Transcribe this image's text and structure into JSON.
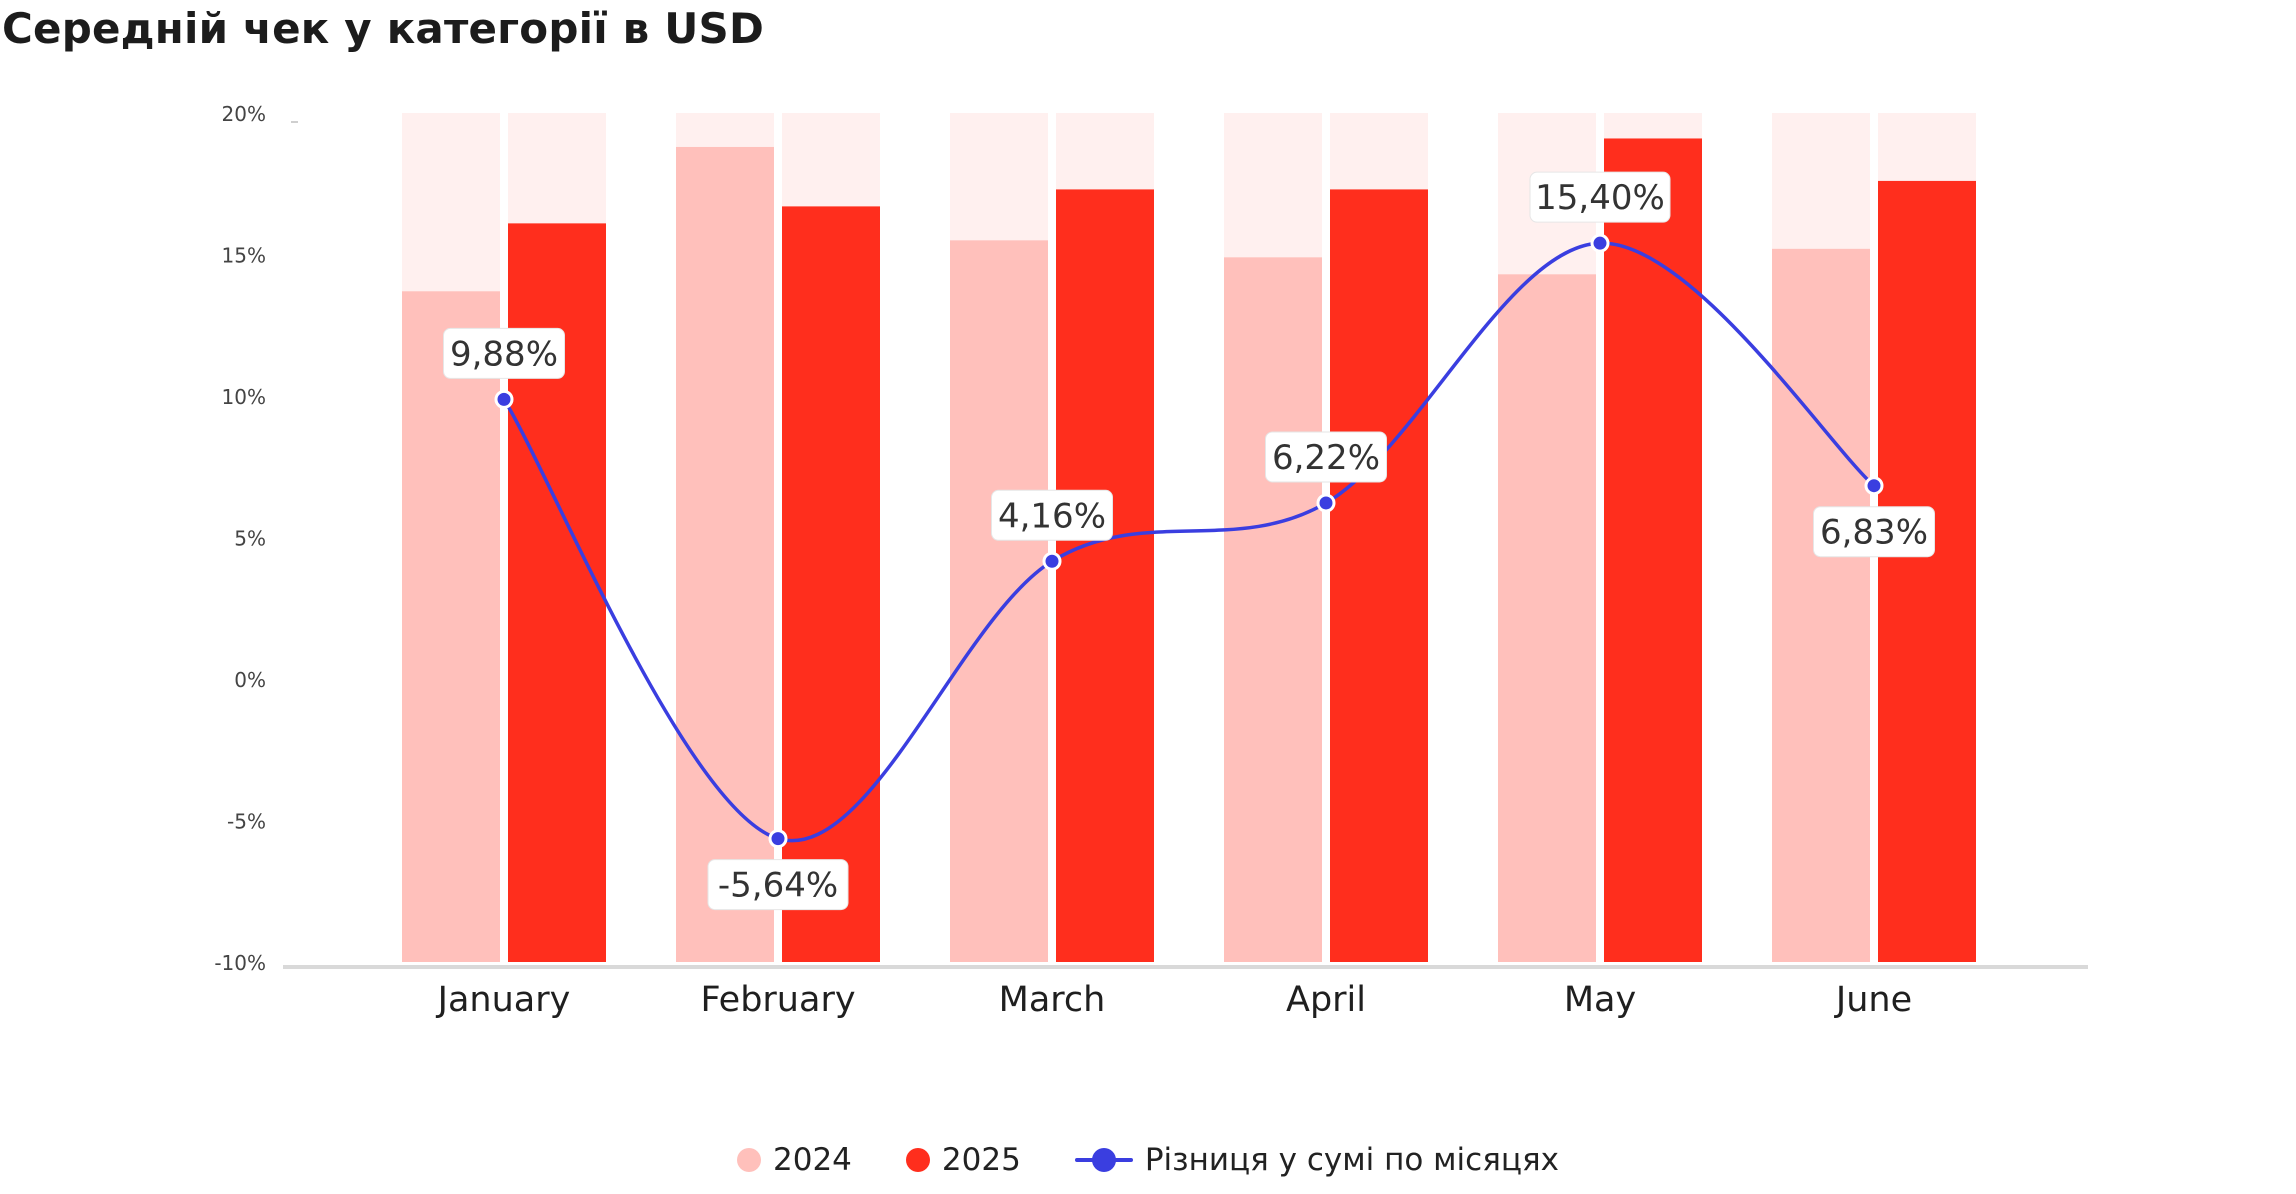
{
  "title": "Середній чек у категорії в USD",
  "colors": {
    "bar_2024": "#ffc0bb",
    "bar_2025": "#ff2e1d",
    "bar_background": "#fff0ef",
    "line": "#3a3ee0",
    "axis": "#d9d9d9",
    "tick_text": "#444444",
    "label_text": "#333333"
  },
  "legend": {
    "item_2024": "2024",
    "item_2025": "2025",
    "item_line": "Різниця у сумі по місяцях"
  },
  "chart_data": {
    "type": "bar",
    "categories": [
      "January",
      "February",
      "March",
      "April",
      "May",
      "June"
    ],
    "series": [
      {
        "name": "2024",
        "kind": "bar",
        "values": [
          0.79,
          0.96,
          0.85,
          0.83,
          0.81,
          0.84
        ]
      },
      {
        "name": "2025",
        "kind": "bar",
        "values": [
          0.87,
          0.89,
          0.91,
          0.91,
          0.97,
          0.92
        ]
      },
      {
        "name": "Різниця у сумі по місяцях",
        "kind": "line",
        "axis": "y",
        "values": [
          9.88,
          -5.64,
          4.16,
          6.22,
          15.4,
          6.83
        ],
        "labels": [
          "9,88%",
          "-5,64%",
          "4,16%",
          "6,22%",
          "15,40%",
          "6,83%"
        ]
      }
    ],
    "bar_note": "Bar values are relative heights (fraction of plot height); the bar axis has no printed scale.",
    "y_axis": {
      "min": -10,
      "max": 20,
      "ticks": [
        20,
        15,
        10,
        5,
        0,
        -5,
        -10
      ],
      "tick_labels": [
        "20%",
        "15%",
        "10%",
        "5%",
        "0%",
        "-5%",
        "-10%"
      ]
    },
    "legend_position": "bottom-center",
    "grid": false
  }
}
